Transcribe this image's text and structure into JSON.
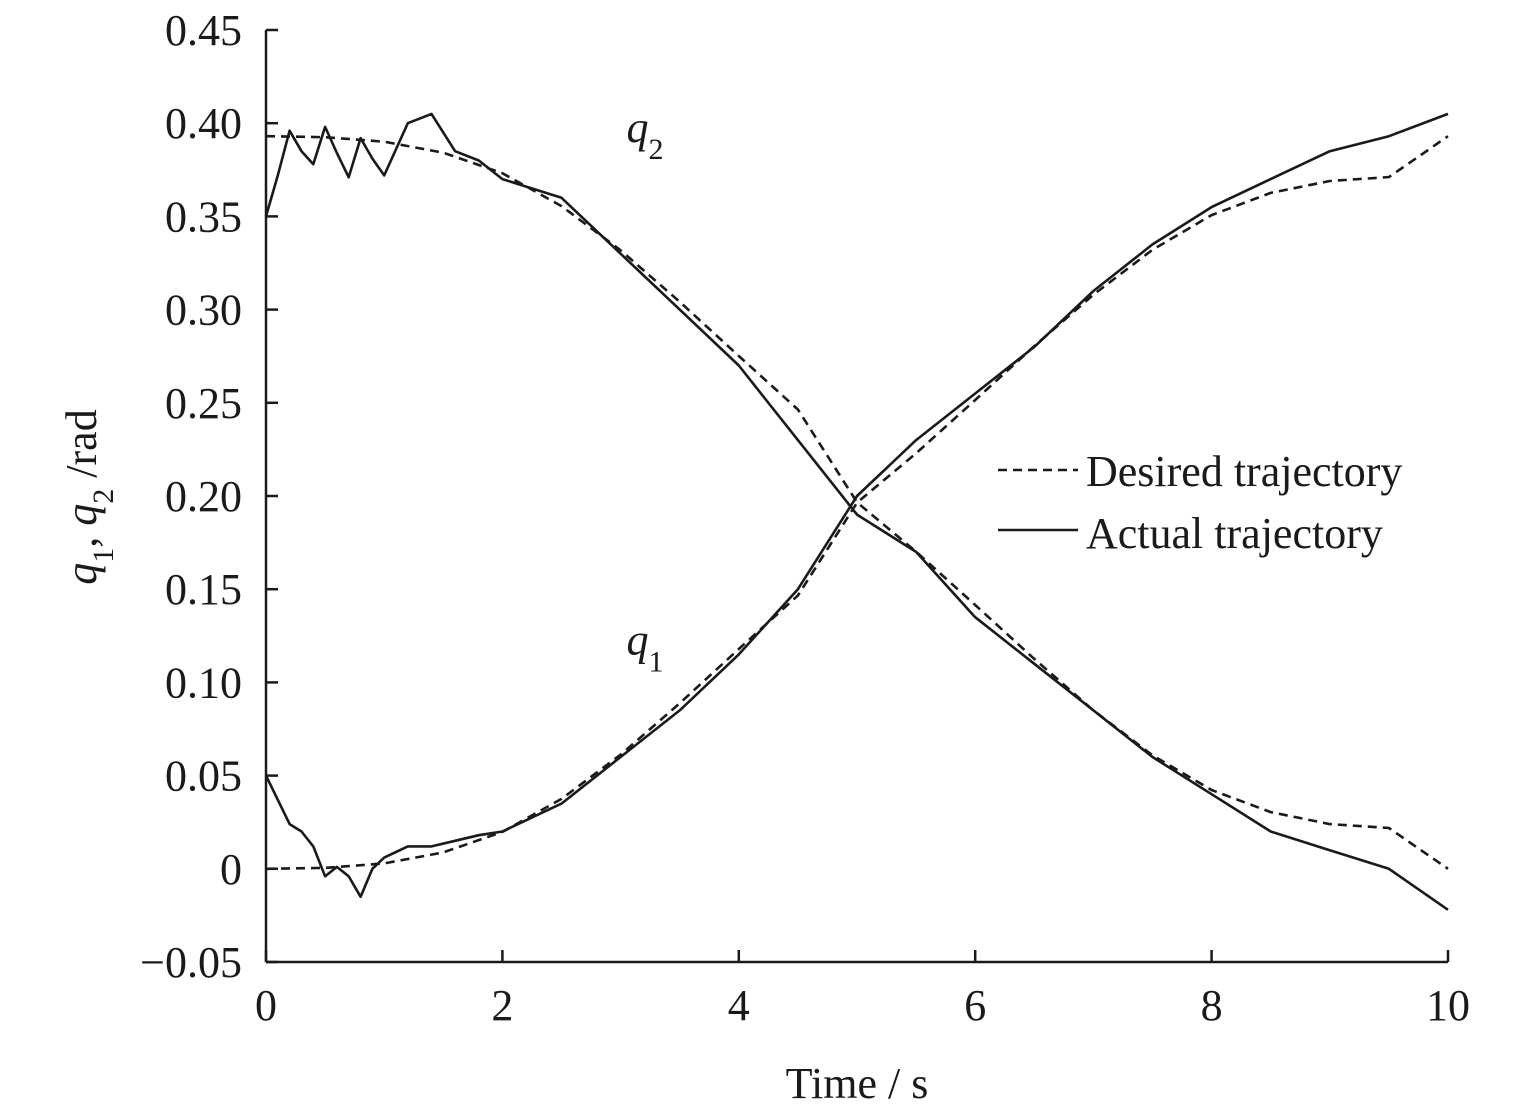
{
  "chart_data": {
    "type": "line",
    "xlabel": "Time / s",
    "ylabel": {
      "parts": [
        "q",
        "1",
        ", ",
        "q",
        "2",
        " /rad"
      ]
    },
    "xlim": [
      0,
      10
    ],
    "ylim": [
      -0.05,
      0.45
    ],
    "x_ticks": [
      0,
      2,
      4,
      6,
      8,
      10
    ],
    "x_tick_labels": [
      "0",
      "2",
      "4",
      "6",
      "8",
      "10"
    ],
    "y_ticks": [
      -0.05,
      0,
      0.05,
      0.1,
      0.15,
      0.2,
      0.25,
      0.3,
      0.35,
      0.4,
      0.45
    ],
    "y_tick_labels": [
      "−0.05",
      "0",
      "0.05",
      "0.10",
      "0.15",
      "0.20",
      "0.25",
      "0.30",
      "0.35",
      "0.40",
      "0.45"
    ],
    "grid": false,
    "legend": {
      "placement": "center-right",
      "entries": [
        {
          "label": "Desired trajectory",
          "style": "dashed"
        },
        {
          "label": "Actual trajectory",
          "style": "solid"
        }
      ]
    },
    "series_labels": [
      {
        "letter": "q",
        "sub": "2",
        "x": 3.05,
        "y": 0.39
      },
      {
        "letter": "q",
        "sub": "1",
        "x": 3.05,
        "y": 0.115
      }
    ],
    "series": [
      {
        "name": "Desired trajectory",
        "style": "dashed",
        "x": [
          0,
          0.5,
          1,
          1.5,
          2,
          2.5,
          3,
          3.5,
          4,
          4.5,
          5,
          5.5,
          6,
          6.5,
          7,
          7.5,
          8,
          8.5,
          9,
          9.5,
          10
        ],
        "y_q1": [
          0.0,
          0.0005,
          0.0029,
          0.0088,
          0.0198,
          0.0375,
          0.0612,
          0.0888,
          0.1179,
          0.1466,
          0.1964,
          0.2229,
          0.2515,
          0.2804,
          0.308,
          0.3321,
          0.3507,
          0.3626,
          0.369,
          0.3711,
          0.393
        ],
        "y_q2": [
          0.393,
          0.3925,
          0.3901,
          0.3842,
          0.3732,
          0.3555,
          0.3318,
          0.3042,
          0.2751,
          0.2464,
          0.1966,
          0.1701,
          0.1415,
          0.1126,
          0.085,
          0.0609,
          0.0423,
          0.0304,
          0.024,
          0.0219,
          0.0
        ]
      },
      {
        "name": "Actual trajectory",
        "style": "solid",
        "x": [
          0,
          0.1,
          0.2,
          0.3,
          0.4,
          0.5,
          0.6,
          0.7,
          0.8,
          0.9,
          1.0,
          1.2,
          1.4,
          1.6,
          1.8,
          2.0,
          2.5,
          3.0,
          3.5,
          4.0,
          4.5,
          5.0,
          5.5,
          6.0,
          6.5,
          7.0,
          7.5,
          8.0,
          8.5,
          9.0,
          9.5,
          10.0
        ],
        "y_q1": [
          0.05,
          0.037,
          0.024,
          0.02,
          0.012,
          -0.004,
          0.001,
          -0.004,
          -0.015,
          0.0,
          0.006,
          0.012,
          0.012,
          0.015,
          0.018,
          0.02,
          0.035,
          0.06,
          0.085,
          0.115,
          0.15,
          0.2,
          0.23,
          0.255,
          0.28,
          0.31,
          0.335,
          0.355,
          0.37,
          0.385,
          0.393,
          0.405
        ],
        "y_q2": [
          0.35,
          0.372,
          0.396,
          0.385,
          0.378,
          0.398,
          0.384,
          0.371,
          0.392,
          0.381,
          0.372,
          0.4,
          0.405,
          0.385,
          0.38,
          0.37,
          0.36,
          0.33,
          0.3,
          0.27,
          0.23,
          0.19,
          0.17,
          0.135,
          0.11,
          0.085,
          0.06,
          0.04,
          0.02,
          0.01,
          0.0,
          -0.022
        ]
      }
    ]
  }
}
